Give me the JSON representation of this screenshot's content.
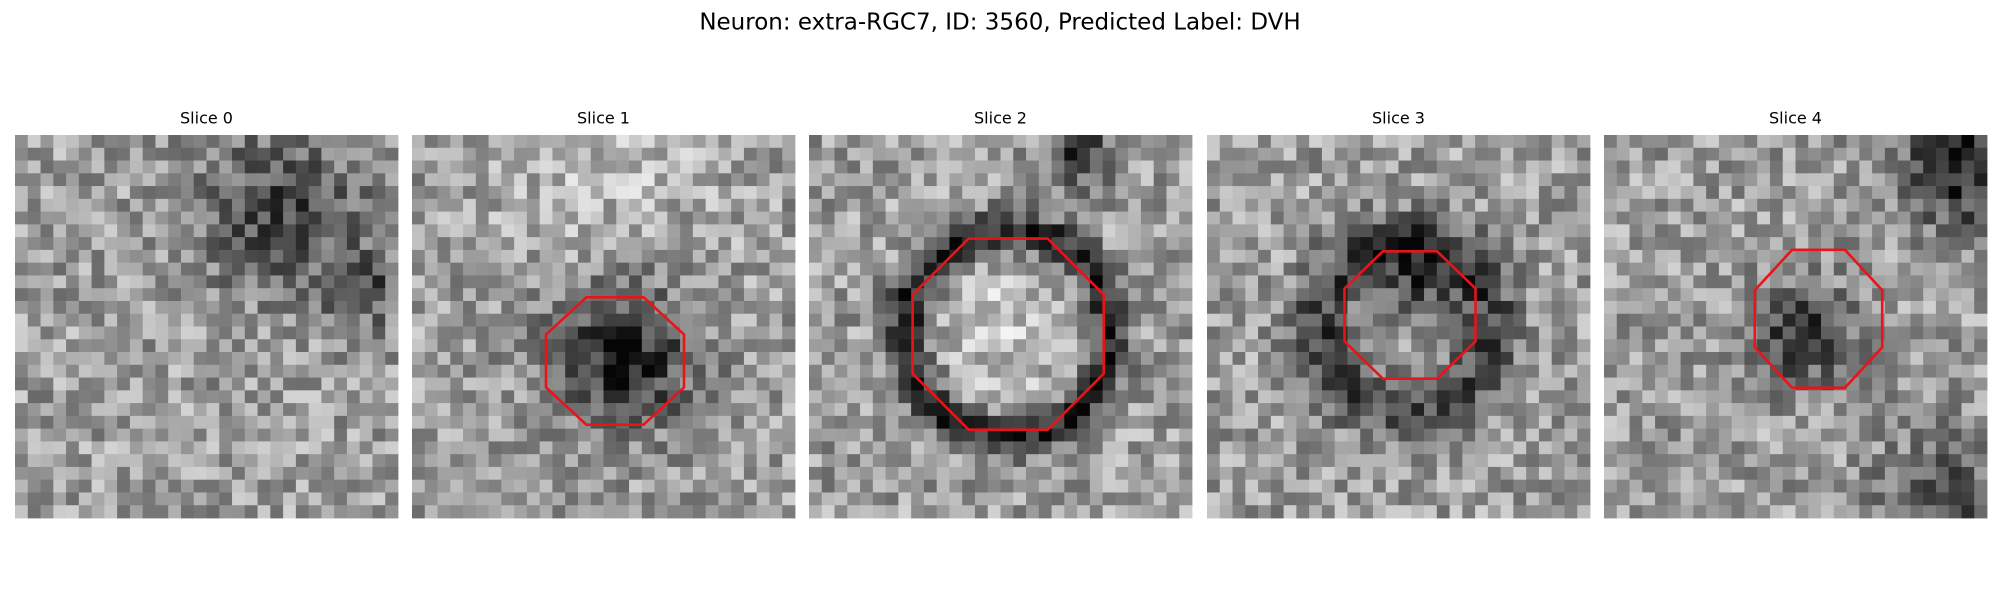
{
  "title": "Neuron: extra-RGC7, ID: 3560, Predicted Label: DVH",
  "panels": [
    {
      "title": "Slice 0"
    },
    {
      "title": "Slice 1"
    },
    {
      "title": "Slice 2"
    },
    {
      "title": "Slice 3"
    },
    {
      "title": "Slice 4"
    }
  ]
}
